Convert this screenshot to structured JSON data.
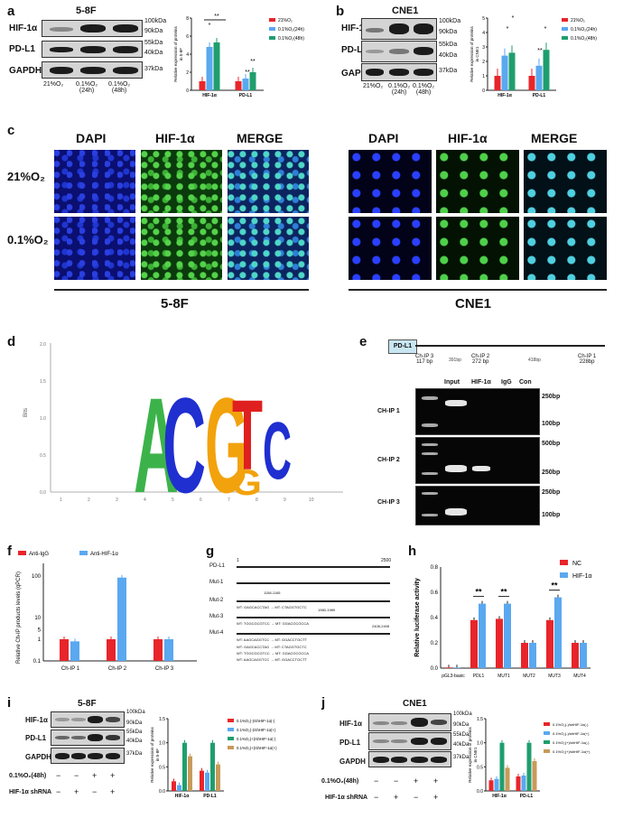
{
  "panels": {
    "a": "a",
    "b": "b",
    "c": "c",
    "d": "d",
    "e": "e",
    "f": "f",
    "g": "g",
    "h": "h",
    "i": "i",
    "j": "j"
  },
  "panel_a": {
    "title": "5-8F",
    "rows": [
      "HIF-1α",
      "PD-L1",
      "GAPDH"
    ],
    "markers": [
      "100kDa",
      "90kDa",
      "55kDa",
      "40kDa",
      "37kDa"
    ],
    "lanes": [
      "21%O₂",
      "0.1%O₂\n(24h)",
      "0.1%O₂\n(48h)"
    ],
    "ylabel": "Relative expression of proteins\nin 5-8F",
    "groups": [
      "HIF-1α",
      "PD-L1"
    ],
    "legend": [
      "21%O₂",
      "0.1%O₂(24h)",
      "0.1%O₂(48h)"
    ],
    "sig": [
      "**",
      "*",
      "**",
      "**"
    ],
    "ticks": [
      "0",
      "2",
      "4",
      "6",
      "8"
    ]
  },
  "panel_b": {
    "title": "CNE1",
    "rows": [
      "HIF-1α",
      "PD-L1",
      "GAPDH"
    ],
    "markers": [
      "100kDa",
      "90kDa",
      "55kDa",
      "40kDa",
      "37kDa"
    ],
    "lanes": [
      "21%O₂",
      "0.1%O₂\n(24h)",
      "0.1%O₂\n(48h)"
    ],
    "ylabel": "Relative expression of proteins\nin CNE1",
    "groups": [
      "HIF-1α",
      "PD-L1"
    ],
    "legend": [
      "21%O₂",
      "0.1%O₂(24h)",
      "0.1%O₂(48h)"
    ],
    "sig": [
      "*",
      "*",
      "*",
      "**"
    ],
    "ticks": [
      "0",
      "1",
      "2",
      "3",
      "4",
      "5"
    ]
  },
  "panel_c": {
    "cols": [
      "DAPI",
      "HIF-1α",
      "MERGE",
      "DAPI",
      "HIF-1α",
      "MERGE"
    ],
    "rows": [
      "21%O₂",
      "0.1%O₂"
    ],
    "groups": [
      "5-8F",
      "CNE1"
    ]
  },
  "panel_d": {
    "ylabel": "Bits",
    "yticks": [
      "2.0",
      "1.5",
      "1.0",
      "0.5",
      "0.0"
    ],
    "xticks": [
      "1",
      "2",
      "3",
      "4",
      "5",
      "6",
      "7",
      "8",
      "9",
      "10"
    ],
    "motif": [
      "A",
      "C",
      "G",
      "T",
      "G",
      "C"
    ]
  },
  "panel_e": {
    "gene": "PD-L1",
    "sites": [
      "Ch-IP 3\n117 bp",
      "Ch-IP 2\n272 bp",
      "Ch-IP 1\n228bp"
    ],
    "gaps": [
      "391bp",
      "418bp"
    ],
    "lanes": [
      "Input",
      "HIF-1α",
      "IgG",
      "Con"
    ],
    "rows": [
      "CH-IP 1",
      "CH-IP 2",
      "CH-IP 3"
    ],
    "markers": [
      [
        "250bp",
        "100bp"
      ],
      [
        "500bp",
        "250bp"
      ],
      [
        "250bp",
        "100bp"
      ]
    ]
  },
  "panel_f": {
    "ylabel": "Relative Ch-IP products levels (qPCR)",
    "legend": [
      "Anti-IgG",
      "Anti-HIF-1α"
    ],
    "xcats": [
      "Ch-IP 1",
      "Ch-IP 2",
      "Ch-IP 3"
    ],
    "yticks": [
      "100",
      "10",
      "5",
      "1",
      "0.1"
    ]
  },
  "panel_g": {
    "scale_start": "1",
    "scale_end": "2500",
    "rows": [
      "PD-L1",
      "Mut-1",
      "Mut-2",
      "Mut-3",
      "Mut-4"
    ],
    "sites": [
      "1158-1165",
      "1980-1989",
      "2408-2408"
    ],
    "seqs": [
      "WT: GAGCACCTAG → MT: CTAGGTGCTC",
      "WT: TGGCGCGTCC → MT: GGACGCGCCA",
      "WT: AAGCAGGTCC → MT: GGACCTGCTT"
    ]
  },
  "panel_h": {
    "ylabel": "Relative luciferase activity",
    "legend": [
      "NC",
      "HIF-1α"
    ],
    "cats": [
      "pGL3-basic",
      "PDL1",
      "MUT1",
      "MUT2",
      "MUT3",
      "MUT4"
    ],
    "sig": [
      "**",
      "**",
      "**"
    ],
    "yticks": [
      "0.0",
      "0.2",
      "0.4",
      "0.6",
      "0.8"
    ]
  },
  "panel_i": {
    "title": "5-8F",
    "rows": [
      "HIF-1α",
      "PD-L1",
      "GAPDH"
    ],
    "markers": [
      "100kDa",
      "90kDa",
      "55kDa",
      "40kDa",
      "37kDa"
    ],
    "cond1": "0.1%O₂(48h)",
    "cond2": "HIF-1α shRNA",
    "signs1": [
      "−",
      "−",
      "+",
      "+"
    ],
    "signs2": [
      "−",
      "+",
      "−",
      "+"
    ],
    "ylabel": "Relative expression of proteins\nin 5-8F",
    "groups": [
      "HIF-1α",
      "PD-L1"
    ],
    "legend": [
      "0.1%O₂(-)/shHIF-1α(-)",
      "0.1%O₂(-)/shHIF-1α(+)",
      "0.1%O₂(+)/shHIF-1α(-)",
      "0.1%O₂(+)/shHIF-1α(+)"
    ],
    "yticks": [
      "0.0",
      "0.5",
      "1.0",
      "1.5"
    ]
  },
  "panel_j": {
    "title": "CNE1",
    "rows": [
      "HIF-1α",
      "PD-L1",
      "GAPDH"
    ],
    "markers": [
      "100kDa",
      "90kDa",
      "55kDa",
      "40kDa",
      "37kDa"
    ],
    "cond1": "0.1%O₂(48h)",
    "cond2": "HIF-1α shRNA",
    "signs1": [
      "−",
      "−",
      "+",
      "+"
    ],
    "signs2": [
      "−",
      "+",
      "−",
      "+"
    ],
    "ylabel": "Relative expression of proteins\nin CNE1",
    "groups": [
      "HIF-1α",
      "PD-L1"
    ],
    "legend": [
      "0.1%O₂(-)/shHIF-1α(-)",
      "0.1%O₂(-)/shHIF-1α(+)",
      "0.1%O₂(+)/shHIF-1α(-)",
      "0.1%O₂(+)/shHIF-1α(+)"
    ],
    "yticks": [
      "0.0",
      "0.5",
      "1.0",
      "1.5"
    ]
  },
  "colors": {
    "red": "#e8252a",
    "blue": "#5aa8f0",
    "green": "#1f9e6e",
    "tan": "#c89a5a"
  },
  "chart_data": [
    {
      "type": "bar",
      "id": "a",
      "categories": [
        "HIF-1α",
        "PD-L1"
      ],
      "series": [
        {
          "name": "21%O₂",
          "values": [
            1,
            1
          ]
        },
        {
          "name": "0.1%O₂(24h)",
          "values": [
            4.8,
            1.3
          ]
        },
        {
          "name": "0.1%O₂(48h)",
          "values": [
            5.3,
            2.0
          ]
        }
      ],
      "ylim": [
        0,
        8
      ]
    },
    {
      "type": "bar",
      "id": "b",
      "categories": [
        "HIF-1α",
        "PD-L1"
      ],
      "series": [
        {
          "name": "21%O₂",
          "values": [
            1,
            1
          ]
        },
        {
          "name": "0.1%O₂(24h)",
          "values": [
            2.4,
            1.7
          ]
        },
        {
          "name": "0.1%O₂(48h)",
          "values": [
            2.6,
            2.8
          ]
        }
      ],
      "ylim": [
        0,
        5
      ]
    },
    {
      "type": "bar",
      "id": "f",
      "categories": [
        "Ch-IP 1",
        "Ch-IP 2",
        "Ch-IP 3"
      ],
      "series": [
        {
          "name": "Anti-IgG",
          "values": [
            1,
            1,
            1
          ]
        },
        {
          "name": "Anti-HIF-1α",
          "values": [
            0.8,
            90,
            1
          ]
        }
      ],
      "yscale": "log"
    },
    {
      "type": "bar",
      "id": "h",
      "categories": [
        "pGL3-basic",
        "PDL1",
        "MUT1",
        "MUT2",
        "MUT3",
        "MUT4"
      ],
      "series": [
        {
          "name": "NC",
          "values": [
            0.005,
            0.38,
            0.39,
            0.2,
            0.38,
            0.2
          ]
        },
        {
          "name": "HIF-1α",
          "values": [
            0.005,
            0.51,
            0.51,
            0.2,
            0.56,
            0.2
          ]
        }
      ],
      "ylim": [
        0,
        0.8
      ]
    },
    {
      "type": "bar",
      "id": "i",
      "categories": [
        "HIF-1α",
        "PD-L1"
      ],
      "series": [
        {
          "name": "0.1%O₂(-)/shHIF-1α(-)",
          "values": [
            0.2,
            0.42
          ]
        },
        {
          "name": "0.1%O₂(-)/shHIF-1α(+)",
          "values": [
            0.12,
            0.38
          ]
        },
        {
          "name": "0.1%O₂(+)/shHIF-1α(-)",
          "values": [
            1.0,
            1.0
          ]
        },
        {
          "name": "0.1%O₂(+)/shHIF-1α(+)",
          "values": [
            0.72,
            0.55
          ]
        }
      ],
      "ylim": [
        0,
        1.5
      ]
    },
    {
      "type": "bar",
      "id": "j",
      "categories": [
        "HIF-1α",
        "PD-L1"
      ],
      "series": [
        {
          "name": "0.1%O₂(-)/shHIF-1α(-)",
          "values": [
            0.22,
            0.3
          ]
        },
        {
          "name": "0.1%O₂(-)/shHIF-1α(+)",
          "values": [
            0.25,
            0.32
          ]
        },
        {
          "name": "0.1%O₂(+)/shHIF-1α(-)",
          "values": [
            1.0,
            1.0
          ]
        },
        {
          "name": "0.1%O₂(+)/shHIF-1α(+)",
          "values": [
            0.48,
            0.62
          ]
        }
      ],
      "ylim": [
        0,
        1.5
      ]
    }
  ]
}
